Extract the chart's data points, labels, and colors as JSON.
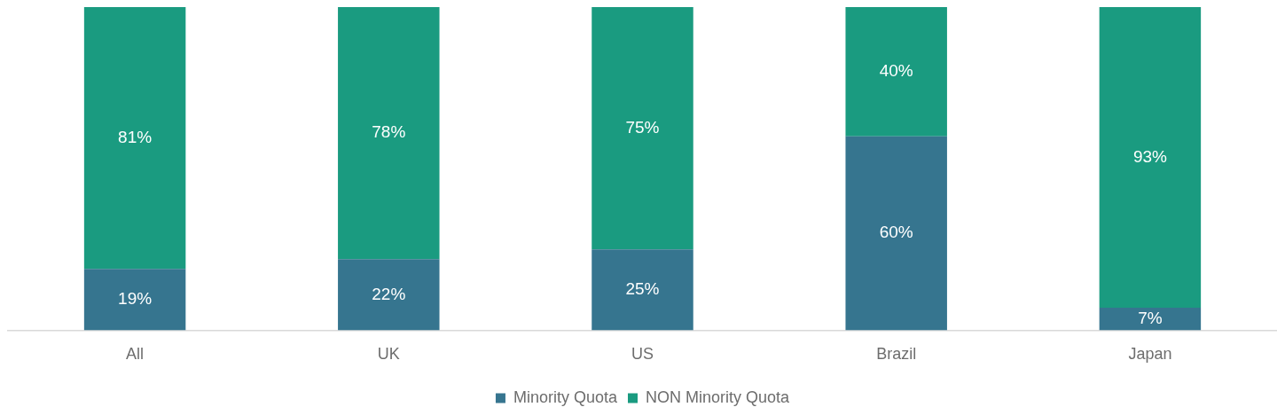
{
  "chart_data": {
    "type": "bar",
    "stacked": true,
    "categories": [
      "All",
      "UK",
      "US",
      "Brazil",
      "Japan"
    ],
    "series": [
      {
        "name": "Minority Quota",
        "color": "#36758f",
        "values": [
          19,
          22,
          25,
          60,
          7
        ],
        "value_labels": [
          "19%",
          "22%",
          "25%",
          "60%",
          "7%"
        ]
      },
      {
        "name": "NON Minority Quota",
        "color": "#1a9b80",
        "values": [
          81,
          78,
          75,
          40,
          93
        ],
        "value_labels": [
          "81%",
          "78%",
          "75%",
          "40%",
          "93%"
        ]
      }
    ],
    "ylim": [
      0,
      100
    ],
    "tick_labels": "x",
    "legend": "bottom"
  }
}
